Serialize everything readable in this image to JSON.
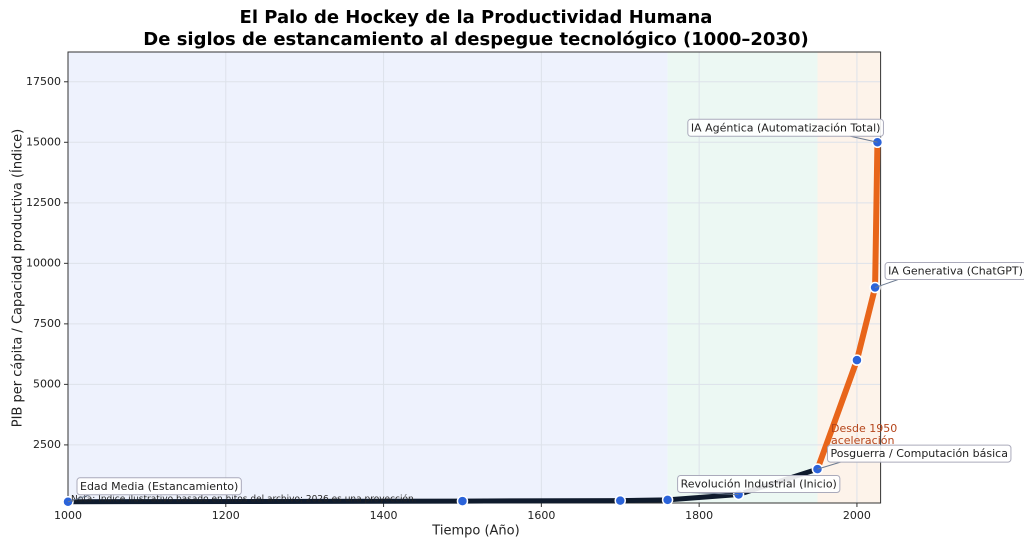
{
  "chart_data": {
    "type": "line",
    "title": [
      "El Palo de Hockey de la Productividad Humana",
      "De siglos de estancamiento al despegue tecnológico (1000–2030)"
    ],
    "xlabel": "Tiempo (Año)",
    "ylabel": "PIB per cápita / Capacidad productiva (Índice)",
    "x": [
      1000,
      1500,
      1700,
      1760,
      1850,
      1950,
      2000,
      2023,
      2026
    ],
    "series": [
      {
        "color": "#0f1b2d",
        "values": [
          150,
          180,
          200,
          230,
          450,
          1500,
          null,
          null,
          null
        ]
      },
      {
        "color": "#e8651a",
        "values": [
          null,
          null,
          null,
          null,
          null,
          1500,
          6000,
          9000,
          15000
        ]
      }
    ],
    "point_color": "#2b63d9",
    "regions": [
      {
        "from": 1000,
        "to": 1760,
        "color": "#eef2fd"
      },
      {
        "from": 1760,
        "to": 1950,
        "color": "#ecf8f3"
      },
      {
        "from": 1950,
        "to": 2030,
        "color": "#fdf3ea"
      }
    ],
    "xlim": [
      1000,
      2030
    ],
    "xticks": [
      1000,
      1200,
      1400,
      1600,
      1800,
      2000
    ],
    "ylim": [
      100,
      18730
    ],
    "yticks": [
      2500,
      5000,
      7500,
      10000,
      12500,
      15000,
      17500
    ],
    "grid": true,
    "annotations": [
      {
        "text": "Edad Media (Estancamiento)",
        "x": 1000,
        "y": 150
      },
      {
        "text": "Revolución Industrial (Inicio)",
        "x": 1850,
        "y": 450
      },
      {
        "text": "Posguerra / Computación básica",
        "x": 1950,
        "y": 1500
      },
      {
        "text": "IA Generativa (ChatGPT)",
        "x": 2023,
        "y": 9000
      },
      {
        "text": "IA Agéntica (Automatización Total)",
        "x": 2026,
        "y": 15000
      }
    ],
    "side_note": [
      "Desde 1950",
      "aceleración"
    ],
    "footnote": "Nota: Índice ilustrativo basado en hitos del archivo; 2026 es una proyección."
  }
}
